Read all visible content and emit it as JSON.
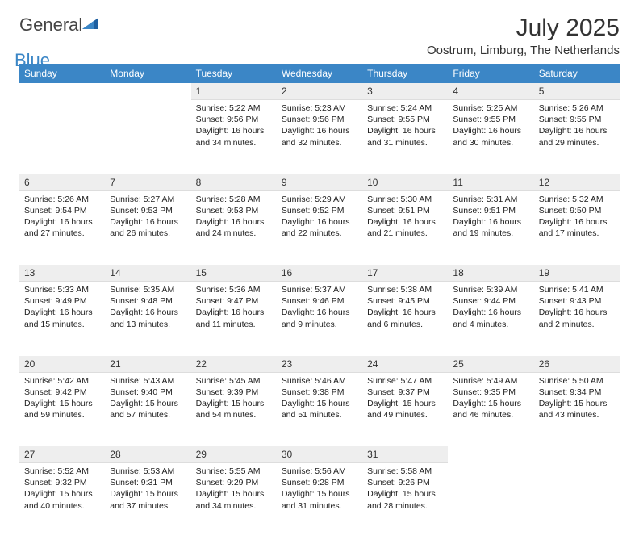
{
  "brand": {
    "general": "General",
    "blue": "Blue"
  },
  "header": {
    "title": "July 2025",
    "location": "Oostrum, Limburg, The Netherlands"
  },
  "colors": {
    "header_bg": "#3b86c6",
    "header_fg": "#ffffff",
    "daynum_bg": "#eeeeee",
    "text": "#222222",
    "page_bg": "#ffffff",
    "logo_gray": "#454545",
    "logo_blue": "#3b86c6"
  },
  "columns": [
    "Sunday",
    "Monday",
    "Tuesday",
    "Wednesday",
    "Thursday",
    "Friday",
    "Saturday"
  ],
  "weeks": [
    [
      null,
      null,
      {
        "n": "1",
        "sunrise": "5:22 AM",
        "sunset": "9:56 PM",
        "dl_h": "16",
        "dl_m": "34"
      },
      {
        "n": "2",
        "sunrise": "5:23 AM",
        "sunset": "9:56 PM",
        "dl_h": "16",
        "dl_m": "32"
      },
      {
        "n": "3",
        "sunrise": "5:24 AM",
        "sunset": "9:55 PM",
        "dl_h": "16",
        "dl_m": "31"
      },
      {
        "n": "4",
        "sunrise": "5:25 AM",
        "sunset": "9:55 PM",
        "dl_h": "16",
        "dl_m": "30"
      },
      {
        "n": "5",
        "sunrise": "5:26 AM",
        "sunset": "9:55 PM",
        "dl_h": "16",
        "dl_m": "29"
      }
    ],
    [
      {
        "n": "6",
        "sunrise": "5:26 AM",
        "sunset": "9:54 PM",
        "dl_h": "16",
        "dl_m": "27"
      },
      {
        "n": "7",
        "sunrise": "5:27 AM",
        "sunset": "9:53 PM",
        "dl_h": "16",
        "dl_m": "26"
      },
      {
        "n": "8",
        "sunrise": "5:28 AM",
        "sunset": "9:53 PM",
        "dl_h": "16",
        "dl_m": "24"
      },
      {
        "n": "9",
        "sunrise": "5:29 AM",
        "sunset": "9:52 PM",
        "dl_h": "16",
        "dl_m": "22"
      },
      {
        "n": "10",
        "sunrise": "5:30 AM",
        "sunset": "9:51 PM",
        "dl_h": "16",
        "dl_m": "21"
      },
      {
        "n": "11",
        "sunrise": "5:31 AM",
        "sunset": "9:51 PM",
        "dl_h": "16",
        "dl_m": "19"
      },
      {
        "n": "12",
        "sunrise": "5:32 AM",
        "sunset": "9:50 PM",
        "dl_h": "16",
        "dl_m": "17"
      }
    ],
    [
      {
        "n": "13",
        "sunrise": "5:33 AM",
        "sunset": "9:49 PM",
        "dl_h": "16",
        "dl_m": "15"
      },
      {
        "n": "14",
        "sunrise": "5:35 AM",
        "sunset": "9:48 PM",
        "dl_h": "16",
        "dl_m": "13"
      },
      {
        "n": "15",
        "sunrise": "5:36 AM",
        "sunset": "9:47 PM",
        "dl_h": "16",
        "dl_m": "11"
      },
      {
        "n": "16",
        "sunrise": "5:37 AM",
        "sunset": "9:46 PM",
        "dl_h": "16",
        "dl_m": "9"
      },
      {
        "n": "17",
        "sunrise": "5:38 AM",
        "sunset": "9:45 PM",
        "dl_h": "16",
        "dl_m": "6"
      },
      {
        "n": "18",
        "sunrise": "5:39 AM",
        "sunset": "9:44 PM",
        "dl_h": "16",
        "dl_m": "4"
      },
      {
        "n": "19",
        "sunrise": "5:41 AM",
        "sunset": "9:43 PM",
        "dl_h": "16",
        "dl_m": "2"
      }
    ],
    [
      {
        "n": "20",
        "sunrise": "5:42 AM",
        "sunset": "9:42 PM",
        "dl_h": "15",
        "dl_m": "59"
      },
      {
        "n": "21",
        "sunrise": "5:43 AM",
        "sunset": "9:40 PM",
        "dl_h": "15",
        "dl_m": "57"
      },
      {
        "n": "22",
        "sunrise": "5:45 AM",
        "sunset": "9:39 PM",
        "dl_h": "15",
        "dl_m": "54"
      },
      {
        "n": "23",
        "sunrise": "5:46 AM",
        "sunset": "9:38 PM",
        "dl_h": "15",
        "dl_m": "51"
      },
      {
        "n": "24",
        "sunrise": "5:47 AM",
        "sunset": "9:37 PM",
        "dl_h": "15",
        "dl_m": "49"
      },
      {
        "n": "25",
        "sunrise": "5:49 AM",
        "sunset": "9:35 PM",
        "dl_h": "15",
        "dl_m": "46"
      },
      {
        "n": "26",
        "sunrise": "5:50 AM",
        "sunset": "9:34 PM",
        "dl_h": "15",
        "dl_m": "43"
      }
    ],
    [
      {
        "n": "27",
        "sunrise": "5:52 AM",
        "sunset": "9:32 PM",
        "dl_h": "15",
        "dl_m": "40"
      },
      {
        "n": "28",
        "sunrise": "5:53 AM",
        "sunset": "9:31 PM",
        "dl_h": "15",
        "dl_m": "37"
      },
      {
        "n": "29",
        "sunrise": "5:55 AM",
        "sunset": "9:29 PM",
        "dl_h": "15",
        "dl_m": "34"
      },
      {
        "n": "30",
        "sunrise": "5:56 AM",
        "sunset": "9:28 PM",
        "dl_h": "15",
        "dl_m": "31"
      },
      {
        "n": "31",
        "sunrise": "5:58 AM",
        "sunset": "9:26 PM",
        "dl_h": "15",
        "dl_m": "28"
      },
      null,
      null
    ]
  ],
  "labels": {
    "sunrise": "Sunrise:",
    "sunset": "Sunset:",
    "daylight": "Daylight:",
    "hours": "hours",
    "and": "and",
    "minutes": "minutes."
  }
}
